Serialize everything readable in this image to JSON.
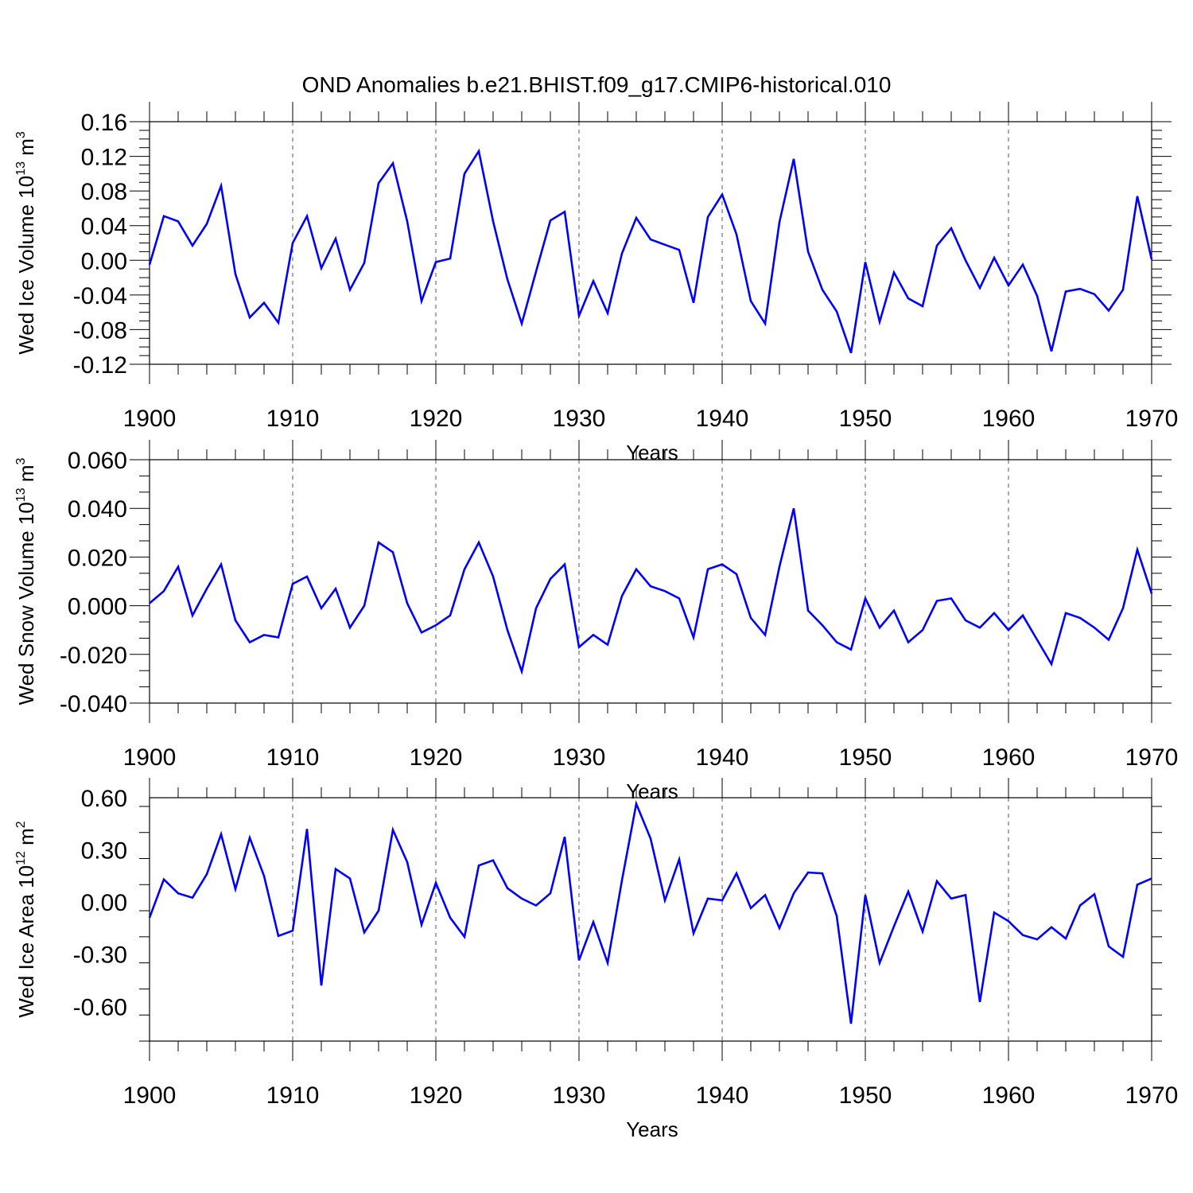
{
  "title": "OND Anomalies b.e21.BHIST.f09_g17.CMIP6-historical.010",
  "series_color": "#0000ff",
  "chart_data": [
    {
      "type": "line",
      "ylabel_main": "Wed Ice Volume 10",
      "ylabel_exp": "13",
      "ylabel_unit": " m",
      "ylabel_unit_exp": "3",
      "xlabel": "Years",
      "xlim": [
        1900,
        1970
      ],
      "ylim": [
        -0.12,
        0.16
      ],
      "xticks": [
        1900,
        1910,
        1920,
        1930,
        1940,
        1950,
        1960,
        1970
      ],
      "xtick_labels": [
        "1900",
        "1910",
        "1920",
        "1930",
        "1940",
        "1950",
        "1960",
        "1970"
      ],
      "yticks": [
        -0.12,
        -0.08,
        -0.04,
        0.0,
        0.04,
        0.08,
        0.12,
        0.16
      ],
      "ytick_labels": [
        "-0.12",
        "-0.08",
        "-0.04",
        "0.00",
        "0.04",
        "0.08",
        "0.12",
        "0.16"
      ],
      "x": [
        1900,
        1901,
        1902,
        1903,
        1904,
        1905,
        1906,
        1907,
        1908,
        1909,
        1910,
        1911,
        1912,
        1913,
        1914,
        1915,
        1916,
        1917,
        1918,
        1919,
        1920,
        1921,
        1922,
        1923,
        1924,
        1925,
        1926,
        1927,
        1928,
        1929,
        1930,
        1931,
        1932,
        1933,
        1934,
        1935,
        1936,
        1937,
        1938,
        1939,
        1940,
        1941,
        1942,
        1943,
        1944,
        1945,
        1946,
        1947,
        1948,
        1949,
        1950,
        1951,
        1952,
        1953,
        1954,
        1955,
        1956,
        1957,
        1958,
        1959,
        1960,
        1961,
        1962,
        1963,
        1964,
        1965,
        1966,
        1967,
        1968,
        1969,
        1970
      ],
      "y": [
        -0.005,
        0.051,
        0.045,
        0.017,
        0.042,
        0.086,
        -0.016,
        -0.066,
        -0.049,
        -0.072,
        0.02,
        0.051,
        -0.009,
        0.025,
        -0.034,
        -0.003,
        0.089,
        0.112,
        0.045,
        -0.047,
        -0.002,
        0.002,
        0.1,
        0.126,
        0.045,
        -0.022,
        -0.073,
        -0.013,
        0.046,
        0.056,
        -0.064,
        -0.024,
        -0.061,
        0.008,
        0.049,
        0.024,
        0.018,
        0.012,
        -0.049,
        0.05,
        0.076,
        0.03,
        -0.047,
        -0.073,
        0.044,
        0.117,
        0.01,
        -0.034,
        -0.059,
        -0.107,
        -0.002,
        -0.071,
        -0.014,
        -0.044,
        -0.053,
        0.017,
        0.037,
        0.0,
        -0.032,
        0.003,
        -0.029,
        -0.005,
        -0.041,
        -0.105,
        -0.036,
        -0.033,
        -0.039,
        -0.058,
        -0.034,
        0.074,
        0.001
      ]
    },
    {
      "type": "line",
      "ylabel_main": "Wed Snow Volume 10",
      "ylabel_exp": "13",
      "ylabel_unit": " m",
      "ylabel_unit_exp": "3",
      "xlabel": "Years",
      "xlim": [
        1900,
        1970
      ],
      "ylim": [
        -0.04,
        0.06
      ],
      "xticks": [
        1900,
        1910,
        1920,
        1930,
        1940,
        1950,
        1960,
        1970
      ],
      "xtick_labels": [
        "1900",
        "1910",
        "1920",
        "1930",
        "1940",
        "1950",
        "1960",
        "1970"
      ],
      "yticks": [
        -0.04,
        -0.02,
        0.0,
        0.02,
        0.04,
        0.06
      ],
      "ytick_labels": [
        "-0.040",
        "-0.020",
        "0.000",
        "0.020",
        "0.040",
        "0.060"
      ],
      "x": [
        1900,
        1901,
        1902,
        1903,
        1904,
        1905,
        1906,
        1907,
        1908,
        1909,
        1910,
        1911,
        1912,
        1913,
        1914,
        1915,
        1916,
        1917,
        1918,
        1919,
        1920,
        1921,
        1922,
        1923,
        1924,
        1925,
        1926,
        1927,
        1928,
        1929,
        1930,
        1931,
        1932,
        1933,
        1934,
        1935,
        1936,
        1937,
        1938,
        1939,
        1940,
        1941,
        1942,
        1943,
        1944,
        1945,
        1946,
        1947,
        1948,
        1949,
        1950,
        1951,
        1952,
        1953,
        1954,
        1955,
        1956,
        1957,
        1958,
        1959,
        1960,
        1961,
        1962,
        1963,
        1964,
        1965,
        1966,
        1967,
        1968,
        1969,
        1970
      ],
      "y": [
        0.001,
        0.006,
        0.016,
        -0.004,
        0.007,
        0.017,
        -0.006,
        -0.015,
        -0.012,
        -0.013,
        0.009,
        0.012,
        -0.001,
        0.007,
        -0.009,
        0.0,
        0.026,
        0.022,
        0.001,
        -0.011,
        -0.008,
        -0.004,
        0.015,
        0.026,
        0.012,
        -0.01,
        -0.027,
        -0.001,
        0.011,
        0.017,
        -0.017,
        -0.012,
        -0.016,
        0.004,
        0.015,
        0.008,
        0.006,
        0.003,
        -0.013,
        0.015,
        0.017,
        0.013,
        -0.005,
        -0.012,
        0.016,
        0.04,
        -0.002,
        -0.008,
        -0.015,
        -0.018,
        0.003,
        -0.009,
        -0.002,
        -0.015,
        -0.01,
        0.002,
        0.003,
        -0.006,
        -0.009,
        -0.003,
        -0.01,
        -0.004,
        -0.014,
        -0.024,
        -0.003,
        -0.005,
        -0.009,
        -0.014,
        -0.001,
        0.023,
        0.005
      ]
    },
    {
      "type": "line",
      "ylabel_main": "Wed Ice Area 10",
      "ylabel_exp": "12",
      "ylabel_unit": " m",
      "ylabel_unit_exp": "2",
      "xlabel": "Years",
      "xlim": [
        1900,
        1970
      ],
      "ylim": [
        -0.8,
        0.6
      ],
      "xticks": [
        1900,
        1910,
        1920,
        1930,
        1940,
        1950,
        1960,
        1970
      ],
      "xtick_labels": [
        "1900",
        "1910",
        "1920",
        "1930",
        "1940",
        "1950",
        "1960",
        "1970"
      ],
      "yticks": [
        -0.6,
        -0.3,
        0.0,
        0.3,
        0.6
      ],
      "ytick_labels": [
        "-0.60",
        "-0.30",
        "0.00",
        "0.30",
        "0.60"
      ],
      "x": [
        1900,
        1901,
        1902,
        1903,
        1904,
        1905,
        1906,
        1907,
        1908,
        1909,
        1910,
        1911,
        1912,
        1913,
        1914,
        1915,
        1916,
        1917,
        1918,
        1919,
        1920,
        1921,
        1922,
        1923,
        1924,
        1925,
        1926,
        1927,
        1928,
        1929,
        1930,
        1931,
        1932,
        1933,
        1934,
        1935,
        1936,
        1937,
        1938,
        1939,
        1940,
        1941,
        1942,
        1943,
        1944,
        1945,
        1946,
        1947,
        1948,
        1949,
        1950,
        1951,
        1952,
        1953,
        1954,
        1955,
        1956,
        1957,
        1958,
        1959,
        1960,
        1961,
        1962,
        1963,
        1964,
        1965,
        1966,
        1967,
        1968,
        1969,
        1970
      ],
      "y": [
        -0.09,
        0.13,
        0.05,
        0.025,
        0.16,
        0.39,
        0.075,
        0.37,
        0.15,
        -0.195,
        -0.165,
        0.42,
        -0.48,
        0.19,
        0.135,
        -0.175,
        -0.05,
        0.415,
        0.23,
        -0.13,
        0.11,
        -0.09,
        -0.2,
        0.21,
        0.24,
        0.08,
        0.02,
        -0.02,
        0.05,
        0.375,
        -0.335,
        -0.115,
        -0.35,
        0.125,
        0.565,
        0.365,
        0.01,
        0.245,
        -0.18,
        0.02,
        0.01,
        0.165,
        -0.035,
        0.04,
        -0.15,
        0.05,
        0.17,
        0.165,
        -0.08,
        -0.7,
        0.04,
        -0.35,
        -0.14,
        0.06,
        -0.17,
        0.12,
        0.02,
        0.04,
        -0.575,
        -0.06,
        -0.11,
        -0.19,
        -0.215,
        -0.145,
        -0.21,
        -0.02,
        0.045,
        -0.255,
        -0.315,
        0.1,
        0.135
      ]
    }
  ]
}
